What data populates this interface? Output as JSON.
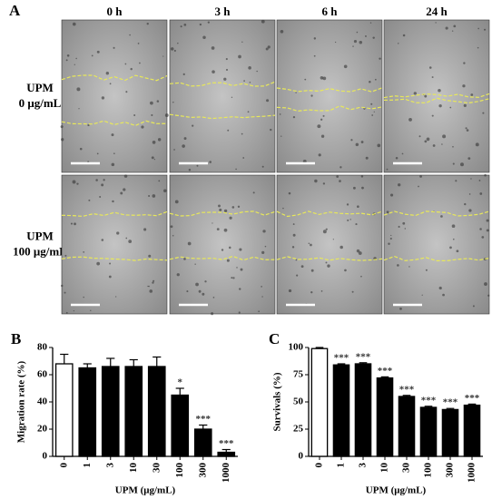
{
  "figure_a": {
    "label": "A",
    "columns": [
      "0 h",
      "3 h",
      "6 h",
      "24 h"
    ],
    "rows": [
      [
        "UPM",
        "0 μg/mL"
      ],
      [
        "UPM",
        "100 μg/mL"
      ]
    ]
  },
  "chart_data": [
    {
      "type": "bar",
      "label": "B",
      "y_label": "Migration rate (%)",
      "x_label": "UPM (μg/mL)",
      "categories": [
        "0",
        "1",
        "3",
        "10",
        "30",
        "100",
        "300",
        "1000"
      ],
      "values": [
        68,
        65,
        66,
        66,
        66,
        45,
        20,
        3
      ],
      "errors": [
        7,
        3,
        6,
        5,
        7,
        5,
        3,
        2
      ],
      "annotations": [
        null,
        null,
        null,
        null,
        null,
        "*",
        "***",
        "***"
      ],
      "colors": [
        "#ffffff",
        "#000000",
        "#000000",
        "#000000",
        "#000000",
        "#000000",
        "#000000",
        "#000000"
      ],
      "ylim": [
        0,
        80
      ],
      "yticks": [
        0,
        20,
        40,
        60,
        80
      ]
    },
    {
      "type": "bar",
      "label": "C",
      "y_label": "Survivals (%)",
      "x_label": "UPM (μg/mL)",
      "categories": [
        "0",
        "1",
        "3",
        "10",
        "30",
        "100",
        "300",
        "1000"
      ],
      "values": [
        99,
        84,
        85,
        72,
        55,
        45,
        43,
        47
      ],
      "errors": [
        1,
        1,
        1,
        1,
        1,
        1,
        1,
        1
      ],
      "annotations": [
        null,
        "***",
        "***",
        "***",
        "***",
        "***",
        "***",
        "***"
      ],
      "colors": [
        "#ffffff",
        "#000000",
        "#000000",
        "#000000",
        "#000000",
        "#000000",
        "#000000",
        "#000000"
      ],
      "ylim": [
        0,
        100
      ],
      "yticks": [
        0,
        25,
        50,
        75,
        100
      ]
    }
  ]
}
